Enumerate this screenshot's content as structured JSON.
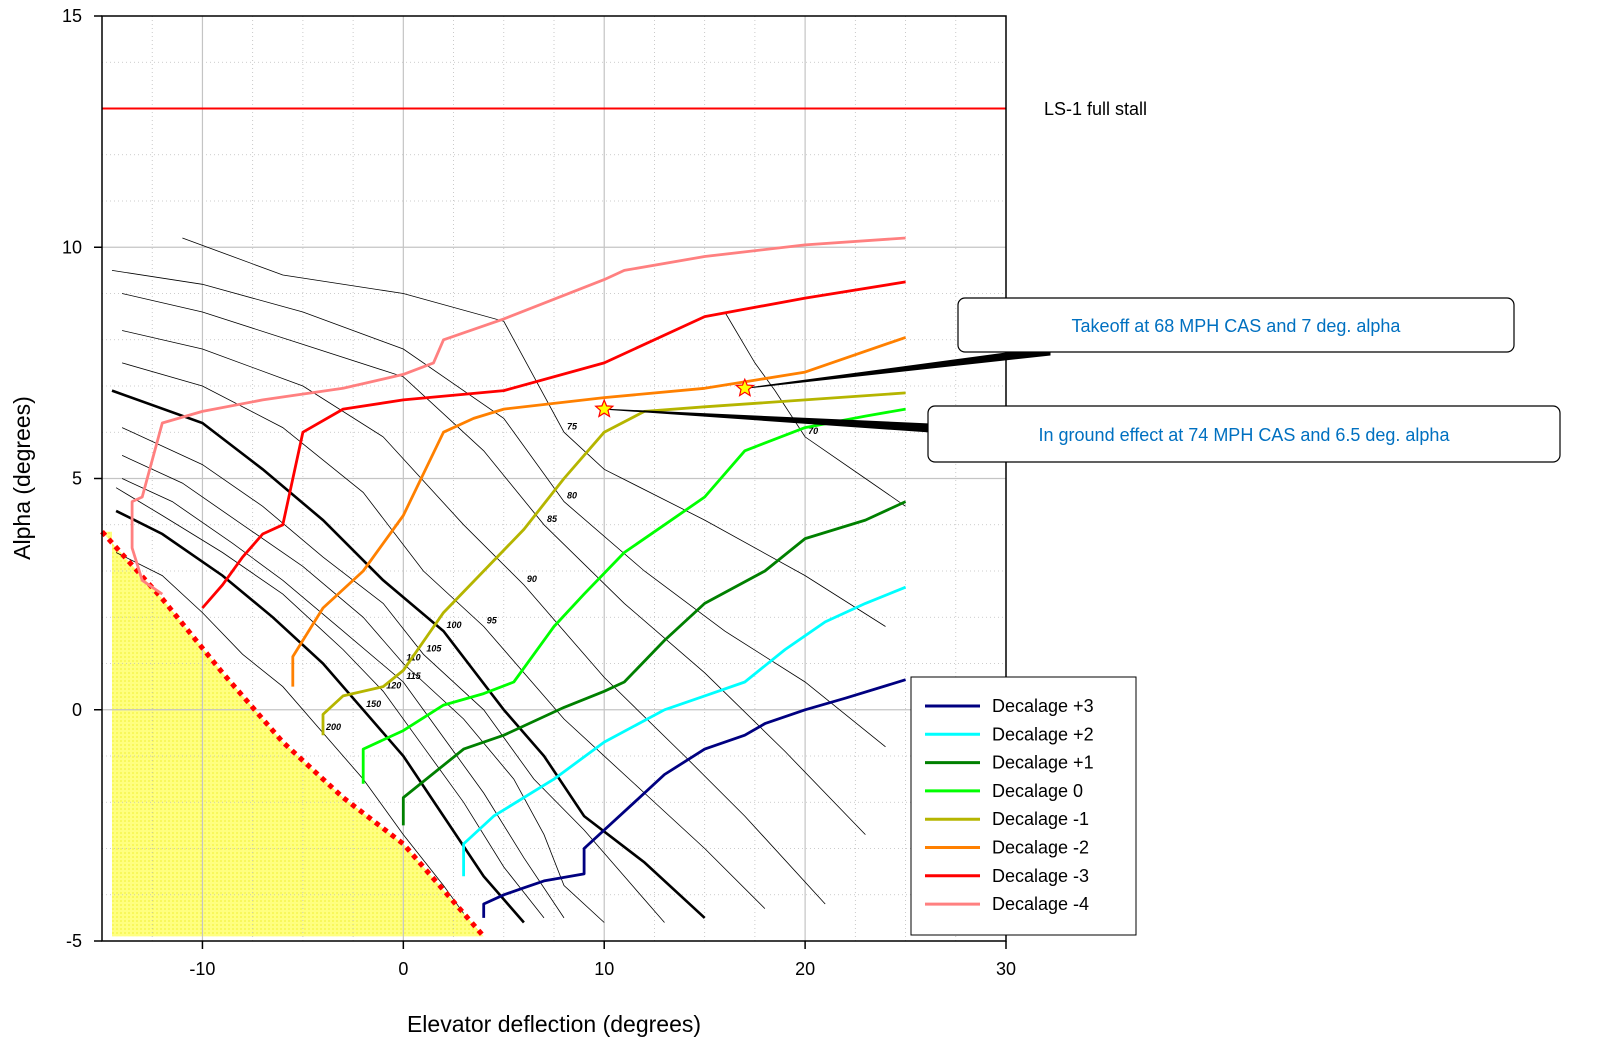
{
  "chart_data": {
    "type": "line",
    "xlabel": "Elevator deflection (degrees)",
    "ylabel": "Alpha (degrees)",
    "xlim": [
      -15,
      30
    ],
    "ylim": [
      -5,
      15
    ],
    "xticks": [
      "-10",
      "0",
      "10",
      "20",
      "30"
    ],
    "xtick_values": [
      -10,
      0,
      10,
      20,
      30
    ],
    "yticks": [
      "-5",
      "0",
      "5",
      "10",
      "15"
    ],
    "ytick_values": [
      -5,
      0,
      5,
      10,
      15
    ],
    "grid": "major solid, minor dotted",
    "legend_position": "lower-right",
    "reference_line": {
      "label": "LS-1 full stall",
      "y": 13,
      "color": "#ff0000"
    },
    "series": [
      {
        "name": "Decalage +3",
        "color": "#000080",
        "points": [
          [
            4,
            -4.5
          ],
          [
            4,
            -4.2
          ],
          [
            5,
            -4
          ],
          [
            6,
            -3.85
          ],
          [
            7,
            -3.7
          ],
          [
            9,
            -3.55
          ],
          [
            9,
            -3
          ],
          [
            11.5,
            -2
          ],
          [
            13,
            -1.4
          ],
          [
            15,
            -0.85
          ],
          [
            17,
            -0.55
          ],
          [
            18,
            -0.3
          ],
          [
            20,
            0
          ],
          [
            22,
            0.25
          ],
          [
            25,
            0.65
          ]
        ]
      },
      {
        "name": "Decalage +2",
        "color": "#00ffff",
        "points": [
          [
            3,
            -3.6
          ],
          [
            3,
            -2.9
          ],
          [
            4.5,
            -2.3
          ],
          [
            7.5,
            -1.5
          ],
          [
            10,
            -0.7
          ],
          [
            13,
            0
          ],
          [
            15,
            0.3
          ],
          [
            17,
            0.6
          ],
          [
            19,
            1.3
          ],
          [
            21,
            1.9
          ],
          [
            23,
            2.3
          ],
          [
            25,
            2.65
          ]
        ]
      },
      {
        "name": "Decalage +1",
        "color": "#008000",
        "points": [
          [
            0,
            -2.5
          ],
          [
            0,
            -1.9
          ],
          [
            3,
            -0.85
          ],
          [
            5,
            -0.55
          ],
          [
            8,
            0.05
          ],
          [
            10,
            0.4
          ],
          [
            11,
            0.6
          ],
          [
            13,
            1.5
          ],
          [
            15,
            2.3
          ],
          [
            18,
            3
          ],
          [
            20,
            3.7
          ],
          [
            23,
            4.1
          ],
          [
            25,
            4.5
          ]
        ]
      },
      {
        "name": "Decalage 0",
        "color": "#00ff00",
        "points": [
          [
            -2,
            -1.6
          ],
          [
            -2,
            -0.85
          ],
          [
            0,
            -0.45
          ],
          [
            2,
            0.1
          ],
          [
            4,
            0.35
          ],
          [
            5.5,
            0.6
          ],
          [
            7.5,
            1.8
          ],
          [
            9,
            2.5
          ],
          [
            11,
            3.4
          ],
          [
            13,
            4
          ],
          [
            15,
            4.6
          ],
          [
            17,
            5.6
          ],
          [
            20,
            6.1
          ],
          [
            23,
            6.35
          ],
          [
            25,
            6.5
          ]
        ]
      },
      {
        "name": "Decalage -1",
        "color": "#b5b500",
        "points": [
          [
            -4,
            -0.55
          ],
          [
            -4,
            -0.1
          ],
          [
            -3,
            0.3
          ],
          [
            -1,
            0.5
          ],
          [
            0,
            0.85
          ],
          [
            2,
            2.1
          ],
          [
            4,
            3
          ],
          [
            6,
            3.9
          ],
          [
            8,
            5
          ],
          [
            10,
            6
          ],
          [
            12,
            6.45
          ],
          [
            15,
            6.55
          ],
          [
            20,
            6.7
          ],
          [
            25,
            6.85
          ]
        ]
      },
      {
        "name": "Decalage -2",
        "color": "#ff8000",
        "points": [
          [
            -5.5,
            0.5
          ],
          [
            -5.5,
            1.15
          ],
          [
            -4,
            2.2
          ],
          [
            -2,
            3
          ],
          [
            0,
            4.2
          ],
          [
            2,
            6
          ],
          [
            3.5,
            6.3
          ],
          [
            5,
            6.5
          ],
          [
            10,
            6.75
          ],
          [
            15,
            6.95
          ],
          [
            20,
            7.3
          ],
          [
            25,
            8.05
          ]
        ]
      },
      {
        "name": "Decalage -3",
        "color": "#ff0000",
        "points": [
          [
            -10,
            2.2
          ],
          [
            -9,
            2.7
          ],
          [
            -8,
            3.3
          ],
          [
            -7,
            3.8
          ],
          [
            -6,
            4
          ],
          [
            -5,
            6
          ],
          [
            -3,
            6.5
          ],
          [
            0,
            6.7
          ],
          [
            5,
            6.9
          ],
          [
            10,
            7.5
          ],
          [
            15,
            8.5
          ],
          [
            20,
            8.9
          ],
          [
            25,
            9.25
          ]
        ]
      },
      {
        "name": "Decalage -4",
        "color": "#ff8080",
        "points": [
          [
            -12,
            2.5
          ],
          [
            -13,
            2.8
          ],
          [
            -13.5,
            3.5
          ],
          [
            -13.5,
            4.5
          ],
          [
            -13,
            4.6
          ],
          [
            -12,
            6.2
          ],
          [
            -10,
            6.45
          ],
          [
            -7,
            6.7
          ],
          [
            -3,
            6.95
          ],
          [
            0,
            7.25
          ],
          [
            1.5,
            7.5
          ],
          [
            2,
            8
          ],
          [
            5,
            8.45
          ],
          [
            10,
            9.3
          ],
          [
            11,
            9.5
          ],
          [
            15,
            9.8
          ],
          [
            20,
            10.05
          ],
          [
            25,
            10.2
          ]
        ]
      }
    ],
    "contours": [
      {
        "label": "70",
        "bold": false,
        "points": [
          [
            16,
            8.6
          ],
          [
            17.5,
            7.5
          ],
          [
            18.5,
            6.9
          ],
          [
            20,
            5.9
          ],
          [
            23,
            5
          ],
          [
            25,
            4.4
          ]
        ]
      },
      {
        "label": "75",
        "bold": false,
        "points": [
          [
            -11,
            10.2
          ],
          [
            -6,
            9.4
          ],
          [
            0,
            9
          ],
          [
            5,
            8.4
          ],
          [
            6,
            7.6
          ],
          [
            8,
            6
          ],
          [
            10,
            5.2
          ],
          [
            15,
            4.1
          ],
          [
            20,
            2.9
          ],
          [
            24,
            1.8
          ]
        ]
      },
      {
        "label": "80",
        "bold": false,
        "points": [
          [
            -14.5,
            9.5
          ],
          [
            -10,
            9.2
          ],
          [
            -5,
            8.6
          ],
          [
            0,
            7.8
          ],
          [
            5,
            6.3
          ],
          [
            8,
            4.5
          ],
          [
            12,
            3
          ],
          [
            16,
            1.7
          ],
          [
            20,
            0.6
          ],
          [
            24,
            -0.8
          ]
        ]
      },
      {
        "label": "85",
        "bold": false,
        "points": [
          [
            -14,
            9
          ],
          [
            -10,
            8.6
          ],
          [
            -5,
            7.9
          ],
          [
            0,
            7.2
          ],
          [
            4,
            5.6
          ],
          [
            7,
            4
          ],
          [
            11,
            2.3
          ],
          [
            15,
            0.8
          ],
          [
            19,
            -0.9
          ],
          [
            23,
            -2.7
          ]
        ]
      },
      {
        "label": "90",
        "bold": false,
        "points": [
          [
            -14,
            8.2
          ],
          [
            -10,
            7.8
          ],
          [
            -5,
            7
          ],
          [
            -1,
            5.9
          ],
          [
            3,
            4
          ],
          [
            6,
            2.7
          ],
          [
            10,
            0.7
          ],
          [
            14,
            -1
          ],
          [
            17,
            -2.3
          ],
          [
            21,
            -4.2
          ]
        ]
      },
      {
        "label": "95",
        "bold": false,
        "points": [
          [
            -14,
            7.5
          ],
          [
            -10,
            7
          ],
          [
            -6,
            6.1
          ],
          [
            -2,
            4.7
          ],
          [
            1,
            3
          ],
          [
            4,
            1.8
          ],
          [
            8,
            -0.2
          ],
          [
            12,
            -1.8
          ],
          [
            15,
            -3
          ],
          [
            18,
            -4.3
          ]
        ]
      },
      {
        "label": "100",
        "bold": true,
        "points": [
          [
            -14.5,
            6.9
          ],
          [
            -10,
            6.2
          ],
          [
            -7,
            5.2
          ],
          [
            -4,
            4.1
          ],
          [
            -1,
            2.8
          ],
          [
            2,
            1.7
          ],
          [
            5,
            0
          ],
          [
            7,
            -1
          ],
          [
            9,
            -2.3
          ],
          [
            12,
            -3.3
          ],
          [
            15,
            -4.5
          ]
        ]
      },
      {
        "label": "105",
        "bold": false,
        "points": [
          [
            -14,
            6.1
          ],
          [
            -10,
            5.3
          ],
          [
            -7,
            4.4
          ],
          [
            -4,
            3.3
          ],
          [
            -1,
            2.3
          ],
          [
            1,
            1.2
          ],
          [
            4,
            0
          ],
          [
            6.5,
            -1.5
          ],
          [
            9,
            -2.6
          ],
          [
            11,
            -3.6
          ],
          [
            13,
            -4.6
          ]
        ]
      },
      {
        "label": "110",
        "bold": false,
        "points": [
          [
            -14,
            5.5
          ],
          [
            -11,
            4.9
          ],
          [
            -8,
            4
          ],
          [
            -5,
            3.1
          ],
          [
            -2,
            2
          ],
          [
            0,
            1
          ],
          [
            3,
            -0.2
          ],
          [
            5.5,
            -1.5
          ],
          [
            7,
            -2.7
          ],
          [
            8,
            -3.8
          ],
          [
            10,
            -4.6
          ]
        ]
      },
      {
        "label": "115",
        "bold": false,
        "points": [
          [
            -14,
            5
          ],
          [
            -11.5,
            4.5
          ],
          [
            -8.5,
            3.6
          ],
          [
            -6,
            2.8
          ],
          [
            -3,
            1.7
          ],
          [
            0,
            0.6
          ],
          [
            2,
            -0.6
          ],
          [
            4,
            -1.8
          ],
          [
            6,
            -3.2
          ],
          [
            8,
            -4.5
          ]
        ]
      },
      {
        "label": "120",
        "bold": false,
        "points": [
          [
            -14.3,
            4.8
          ],
          [
            -12,
            4.2
          ],
          [
            -9,
            3.4
          ],
          [
            -6,
            2.5
          ],
          [
            -3,
            1.3
          ],
          [
            -1,
            0.4
          ],
          [
            1,
            -0.8
          ],
          [
            3,
            -2
          ],
          [
            5,
            -3.4
          ],
          [
            7,
            -4.5
          ]
        ]
      },
      {
        "label": "150",
        "bold": true,
        "points": [
          [
            -14.3,
            4.3
          ],
          [
            -12,
            3.8
          ],
          [
            -9,
            2.9
          ],
          [
            -6.5,
            2
          ],
          [
            -4,
            1
          ],
          [
            -2,
            0
          ],
          [
            0,
            -1
          ],
          [
            2,
            -2.3
          ],
          [
            4,
            -3.6
          ],
          [
            6,
            -4.6
          ]
        ]
      },
      {
        "label": "200",
        "bold": false,
        "points": [
          [
            -14.3,
            3.4
          ],
          [
            -12,
            2.9
          ],
          [
            -10,
            2.1
          ],
          [
            -8,
            1.2
          ],
          [
            -6,
            0.5
          ],
          [
            -4,
            -0.5
          ],
          [
            -2,
            -1.5
          ],
          [
            0,
            -2.7
          ],
          [
            2,
            -3.8
          ],
          [
            3,
            -4.4
          ]
        ]
      }
    ],
    "stall_boundary": [
      [
        -15,
        3.85
      ],
      [
        -12,
        2.4
      ],
      [
        -9,
        0.8
      ],
      [
        -6,
        -0.7
      ],
      [
        -3,
        -1.9
      ],
      [
        0,
        -2.9
      ],
      [
        2,
        -3.9
      ],
      [
        4,
        -4.9
      ]
    ],
    "annotations": [
      {
        "text": "Takeoff at  68 MPH CAS and 7 deg. alpha",
        "x": 17,
        "y": 6.95,
        "color": "#0070c0"
      },
      {
        "text": "In ground effect  at 74 MPH CAS and 6.5 deg. alpha",
        "x": 10,
        "y": 6.5,
        "color": "#0070c0"
      }
    ]
  }
}
